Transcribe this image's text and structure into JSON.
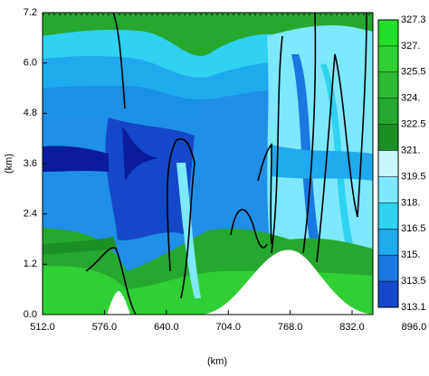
{
  "chart_data": {
    "type": "contour",
    "xlabel": "(km)",
    "ylabel": "(km)",
    "xlim": [
      512,
      853.5
    ],
    "ylim": [
      0,
      7.2
    ],
    "xticks": [
      {
        "value": 512,
        "label": "512.0"
      },
      {
        "value": 576,
        "label": "576.0"
      },
      {
        "value": 640,
        "label": "640.0"
      },
      {
        "value": 704,
        "label": "704.0"
      },
      {
        "value": 768,
        "label": "768.0"
      },
      {
        "value": 832,
        "label": "832.0"
      },
      {
        "value": 896,
        "label": "896.0"
      }
    ],
    "yticks": [
      {
        "value": 0,
        "label": "0.0"
      },
      {
        "value": 1.2,
        "label": "1.2"
      },
      {
        "value": 2.4,
        "label": "2.4"
      },
      {
        "value": 3.6,
        "label": "3.6"
      },
      {
        "value": 4.8,
        "label": "4.8"
      },
      {
        "value": 6,
        "label": "6.0"
      },
      {
        "value": 7.2,
        "label": "7.2"
      }
    ],
    "colorbar": {
      "levels": [
        327.3,
        {
          "value": 327,
          "label": "327."
        },
        325.5,
        {
          "value": 324,
          "label": "324."
        },
        322.5,
        {
          "value": 321,
          "label": "321."
        },
        319.5,
        {
          "value": 318,
          "label": "318."
        },
        316.5,
        {
          "value": 315,
          "label": "315."
        },
        313.5,
        313.1
      ],
      "colors": [
        "#22e02a",
        "#2fcf35",
        "#2dbb33",
        "#26a82e",
        "#1c8f26",
        "#c8f6ff",
        "#7ee8ff",
        "#2fd2f0",
        "#20aaee",
        "#1a78e0",
        "#1448c8",
        "#0a1c9c"
      ]
    }
  }
}
